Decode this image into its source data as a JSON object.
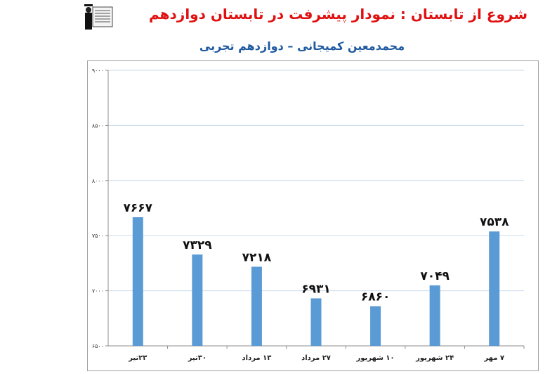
{
  "header": {
    "title": "شروع از تابستان : نمودار پیشرفت در تابستان دوازدهم",
    "subtitle": "محمدمعین کمیجانی – دوازدهم تجربی"
  },
  "chart_data": {
    "type": "bar",
    "title": "شروع از تابستان : نمودار پیشرفت در تابستان دوازدهم",
    "subtitle": "محمدمعین کمیجانی – دوازدهم تجربی",
    "categories": [
      "۲۳تیر",
      "۳۰تیر",
      "۱۳ مرداد",
      "۲۷ مرداد",
      "۱۰ شهریور",
      "۲۴ شهریور",
      "۷ مهر"
    ],
    "values": [
      7667,
      7329,
      7218,
      6931,
      6860,
      7049,
      7538
    ],
    "value_labels": [
      "۷۶۶۷",
      "۷۳۲۹",
      "۷۲۱۸",
      "۶۹۳۱",
      "۶۸۶۰",
      "۷۰۴۹",
      "۷۵۳۸"
    ],
    "ylim": [
      6500,
      9000
    ],
    "yticks": [
      6500,
      7000,
      7500,
      8000,
      8500,
      9000
    ],
    "ytick_labels": [
      "۶۵۰۰",
      "۷۰۰۰",
      "۷۵۰۰",
      "۸۰۰۰",
      "۸۵۰۰",
      "۹۰۰۰"
    ],
    "grid": true,
    "bar_color": "#5b9bd5",
    "grid_color": "#c9daea",
    "xlabel": "",
    "ylabel": ""
  }
}
